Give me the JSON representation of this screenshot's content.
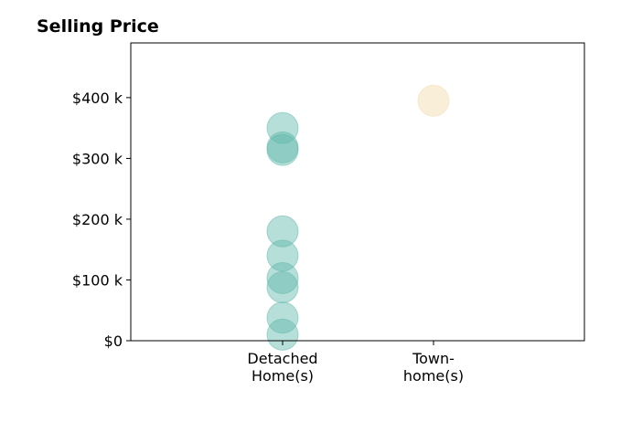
{
  "chart_data": {
    "type": "scatter",
    "title": "Selling Price",
    "xlabel": "",
    "ylabel": "",
    "categories": [
      [
        "Detached",
        "Home(s)"
      ],
      [
        "Town-",
        "home(s)"
      ]
    ],
    "ylim": [
      0,
      490
    ],
    "y_ticks": [
      0,
      100,
      200,
      300,
      400
    ],
    "y_tick_labels": [
      "$0",
      "$100 k",
      "$200 k",
      "$300 k",
      "$400 k"
    ],
    "grid": false,
    "legend": "none",
    "series": [
      {
        "category_index": 0,
        "color": "#5fb8aa",
        "values": [
          350,
          318,
          314,
          180,
          140,
          103,
          88,
          38,
          10
        ]
      },
      {
        "category_index": 1,
        "color": "#f2d9a9",
        "values": [
          395
        ]
      }
    ]
  }
}
